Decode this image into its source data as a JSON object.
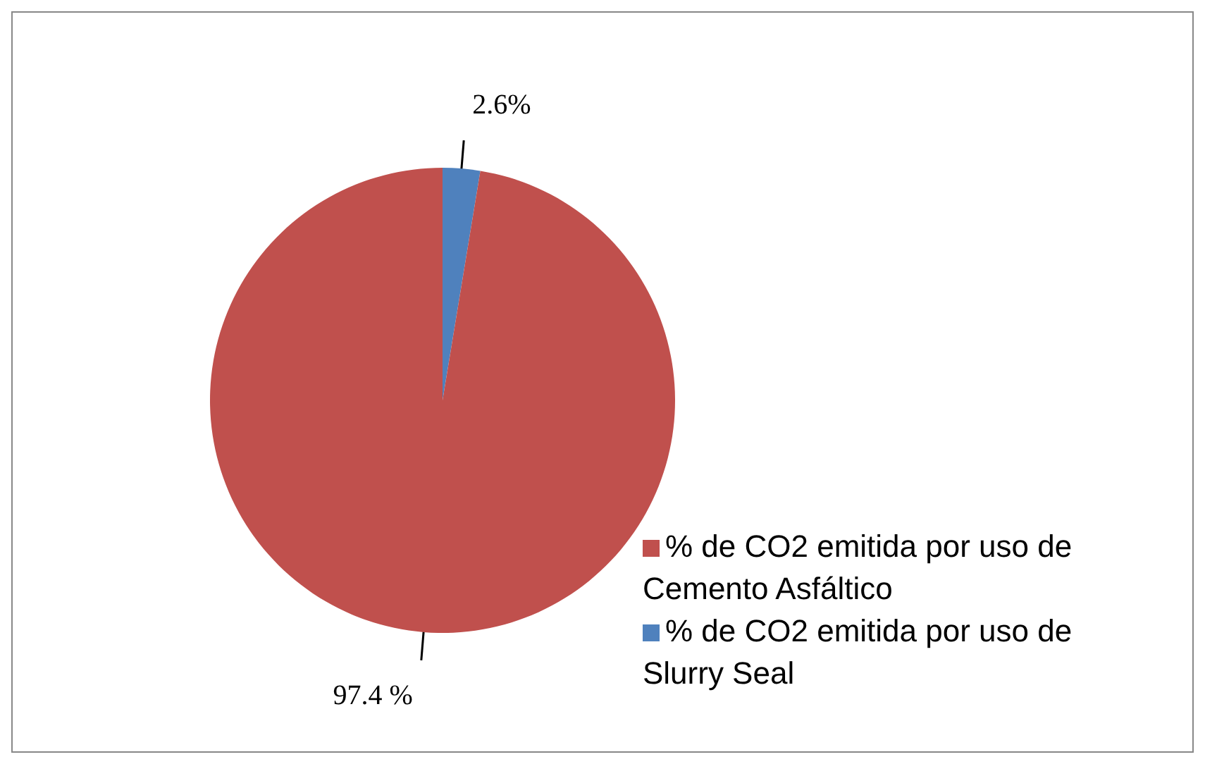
{
  "chart_data": {
    "type": "pie",
    "categories": [
      "% de CO2 emitida por uso de Slurry Seal",
      "% de CO2 emitida por uso de Cemento Asfáltico"
    ],
    "values": [
      2.6,
      97.4
    ],
    "colors": [
      "#4f81bd",
      "#c0504d"
    ],
    "value_labels": [
      "2.6%",
      "97.4 %"
    ],
    "legend": "bottom right"
  }
}
